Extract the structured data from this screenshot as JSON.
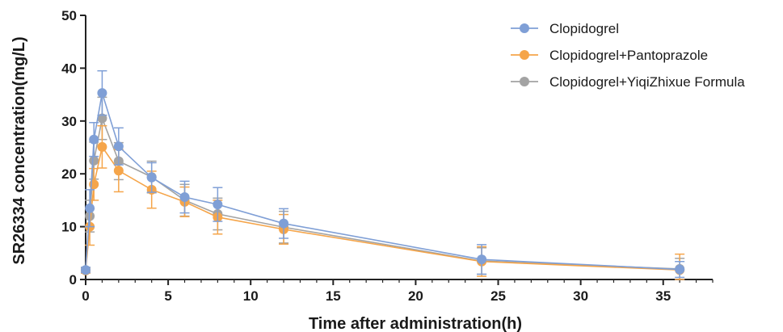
{
  "chart_data": {
    "type": "line",
    "xlabel": "Time after administration(h)",
    "ylabel": "SR26334 concentration(mg/L)",
    "xlim": [
      0,
      38
    ],
    "ylim": [
      0,
      50
    ],
    "xticks": [
      0,
      5,
      10,
      15,
      20,
      25,
      30,
      35
    ],
    "yticks": [
      0,
      10,
      20,
      30,
      40,
      50
    ],
    "grid": false,
    "legend_position": "top-right",
    "x": [
      0,
      0.25,
      0.5,
      1,
      2,
      4,
      6,
      8,
      12,
      24,
      36
    ],
    "series": [
      {
        "name": "Clopidogrel",
        "color": "#7f9fd6",
        "values": [
          1.8,
          13.5,
          26.5,
          35.3,
          25.2,
          19.3,
          15.6,
          14.2,
          10.6,
          3.8,
          1.9
        ],
        "errors": [
          0.5,
          3.5,
          3.2,
          4.2,
          3.5,
          2.8,
          3.0,
          3.2,
          2.8,
          2.8,
          1.5
        ]
      },
      {
        "name": "Clopidogrel+Pantoprazole",
        "color": "#f5a54a",
        "values": [
          1.7,
          10.0,
          18.0,
          25.1,
          20.6,
          17.0,
          14.7,
          11.8,
          9.5,
          3.4,
          1.8
        ],
        "errors": [
          0.5,
          3.5,
          3.0,
          4.0,
          4.0,
          3.5,
          2.8,
          3.2,
          2.8,
          2.8,
          3.0
        ]
      },
      {
        "name": "Clopidogrel+YiqiZhixue Formula",
        "color": "#a3a3a3",
        "values": [
          1.8,
          12.0,
          22.5,
          30.5,
          22.4,
          19.4,
          15.0,
          12.4,
          9.9,
          3.5,
          2.0
        ],
        "errors": [
          0.5,
          3.0,
          3.5,
          4.0,
          3.5,
          3.0,
          3.0,
          3.0,
          3.0,
          2.5,
          2.0
        ]
      }
    ]
  }
}
